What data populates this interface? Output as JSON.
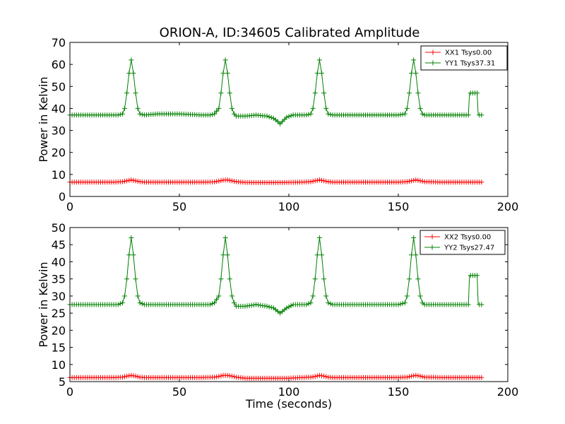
{
  "figure": {
    "title": "ORION-A, ID:34605 Calibrated Amplitude"
  },
  "chart_data": [
    {
      "type": "line",
      "title": "ORION-A, ID:34605 Calibrated Amplitude",
      "xlabel": "",
      "ylabel": "Power in Kelvin",
      "xlim": [
        0,
        200
      ],
      "ylim": [
        0,
        70
      ],
      "xticks": [
        0,
        50,
        100,
        150,
        200
      ],
      "yticks": [
        0,
        10,
        20,
        30,
        40,
        50,
        60,
        70
      ],
      "legend_position": "top-right",
      "series": [
        {
          "name": "XX1 Tsys0.00",
          "color": "#ff0000",
          "marker": "plus",
          "x": [
            0,
            20,
            24,
            26,
            28,
            30,
            32,
            34,
            60,
            66,
            68,
            70,
            72,
            74,
            76,
            80,
            90,
            100,
            106,
            110,
            112,
            114,
            116,
            118,
            120,
            150,
            154,
            156,
            158,
            160,
            162,
            170,
            180,
            186,
            188
          ],
          "y": [
            6.5,
            6.5,
            6.7,
            7.1,
            7.5,
            7.1,
            6.7,
            6.5,
            6.5,
            6.6,
            7.0,
            7.4,
            7.5,
            7.1,
            6.7,
            6.4,
            6.3,
            6.4,
            6.5,
            6.7,
            7.1,
            7.5,
            7.1,
            6.7,
            6.5,
            6.5,
            6.7,
            7.1,
            7.5,
            7.1,
            6.7,
            6.5,
            6.5,
            6.5,
            6.5
          ]
        },
        {
          "name": "YY1 Tsys37.31",
          "color": "#008000",
          "marker": "plus",
          "x": [
            0,
            20,
            22,
            24,
            25,
            26,
            27,
            28,
            29,
            30,
            31,
            32,
            34,
            40,
            50,
            60,
            64,
            66,
            68,
            69,
            70,
            71,
            72,
            73,
            74,
            75,
            76,
            78,
            80,
            85,
            90,
            93,
            95,
            96,
            97,
            99,
            102,
            105,
            108,
            110,
            111,
            112,
            113,
            114,
            115,
            116,
            117,
            118,
            120,
            130,
            140,
            150,
            153,
            154,
            155,
            156,
            157,
            158,
            159,
            160,
            161,
            162,
            164,
            170,
            182,
            182.5,
            184,
            186,
            186.5,
            188
          ],
          "y": [
            37,
            37,
            37,
            37.5,
            40,
            47,
            56,
            62,
            56,
            47,
            40,
            37.5,
            37,
            37.5,
            37.5,
            37,
            37,
            37.5,
            40,
            47,
            56,
            62,
            56,
            47,
            40,
            37.5,
            36.5,
            36.5,
            36.5,
            37,
            36.5,
            35.5,
            34,
            33,
            34,
            36,
            37,
            37,
            37,
            37.5,
            40,
            47,
            56,
            62,
            56,
            47,
            40,
            37.5,
            37,
            37,
            37,
            37,
            37.5,
            40,
            47,
            56,
            62,
            56,
            47,
            40,
            37.5,
            37,
            37,
            37,
            37,
            47,
            47,
            47,
            37,
            37
          ]
        }
      ]
    },
    {
      "type": "line",
      "title": "",
      "xlabel": "Time (seconds)",
      "ylabel": "Power in Kelvin",
      "xlim": [
        0,
        200
      ],
      "ylim": [
        5,
        50
      ],
      "xticks": [
        0,
        50,
        100,
        150,
        200
      ],
      "yticks": [
        5,
        10,
        15,
        20,
        25,
        30,
        35,
        40,
        45,
        50
      ],
      "legend_position": "top-right",
      "series": [
        {
          "name": "XX2 Tsys0.00",
          "color": "#ff0000",
          "marker": "plus",
          "x": [
            0,
            20,
            24,
            26,
            28,
            30,
            32,
            34,
            60,
            66,
            68,
            70,
            72,
            74,
            76,
            80,
            90,
            100,
            106,
            110,
            112,
            114,
            116,
            118,
            120,
            150,
            154,
            156,
            158,
            160,
            162,
            170,
            180,
            186,
            188
          ],
          "y": [
            6.2,
            6.2,
            6.3,
            6.6,
            6.8,
            6.6,
            6.3,
            6.2,
            6.2,
            6.3,
            6.5,
            6.8,
            6.8,
            6.6,
            6.3,
            6.0,
            6.0,
            6.0,
            6.2,
            6.3,
            6.5,
            6.8,
            6.6,
            6.3,
            6.2,
            6.2,
            6.3,
            6.6,
            6.8,
            6.6,
            6.3,
            6.2,
            6.2,
            6.2,
            6.2
          ]
        },
        {
          "name": "YY2 Tsys27.47",
          "color": "#008000",
          "marker": "plus",
          "x": [
            0,
            20,
            22,
            24,
            25,
            26,
            27,
            28,
            29,
            30,
            31,
            32,
            34,
            40,
            50,
            60,
            64,
            66,
            68,
            69,
            70,
            71,
            72,
            73,
            74,
            75,
            76,
            78,
            80,
            85,
            90,
            93,
            95,
            96,
            97,
            99,
            102,
            105,
            108,
            110,
            111,
            112,
            113,
            114,
            115,
            116,
            117,
            118,
            120,
            130,
            140,
            150,
            153,
            154,
            155,
            156,
            157,
            158,
            159,
            160,
            161,
            162,
            164,
            170,
            182,
            182.5,
            184,
            186,
            186.5,
            188
          ],
          "y": [
            27.5,
            27.5,
            27.5,
            28,
            30,
            35,
            42,
            47,
            42,
            35,
            30,
            28,
            27.5,
            27.5,
            27.5,
            27.5,
            27.5,
            28,
            30,
            35,
            42,
            47,
            42,
            35,
            30,
            28,
            27,
            27,
            27,
            27.5,
            27,
            26.5,
            25.5,
            25,
            25.5,
            26.5,
            27.5,
            27.5,
            27.5,
            28,
            30,
            35,
            42,
            47,
            42,
            35,
            30,
            28,
            27.5,
            27.5,
            27.5,
            27.5,
            28,
            30,
            35,
            42,
            47,
            42,
            35,
            30,
            28,
            27.5,
            27.5,
            27.5,
            27.5,
            36,
            36,
            36,
            27.5,
            27.5
          ]
        }
      ]
    }
  ]
}
